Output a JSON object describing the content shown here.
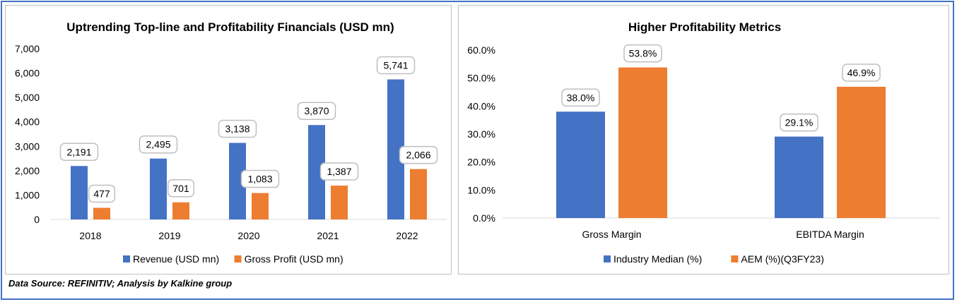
{
  "chart_data": [
    {
      "type": "bar",
      "title": "Uptrending Top-line and Profitability Financials (USD mn)",
      "categories": [
        "2018",
        "2019",
        "2020",
        "2021",
        "2022"
      ],
      "series": [
        {
          "name": "Revenue (USD mn)",
          "color": "#4472c4",
          "values": [
            2191,
            2495,
            3138,
            3870,
            5741
          ],
          "labels": [
            "2,191",
            "2,495",
            "3,138",
            "3,870",
            "5,741"
          ]
        },
        {
          "name": "Gross Profit (USD mn)",
          "color": "#ed7d31",
          "values": [
            477,
            701,
            1083,
            1387,
            2066
          ],
          "labels": [
            "477",
            "701",
            "1,083",
            "1,387",
            "2,066"
          ]
        }
      ],
      "ylim": [
        0,
        7000
      ],
      "yticks": [
        0,
        1000,
        2000,
        3000,
        4000,
        5000,
        6000,
        7000
      ],
      "ytick_labels": [
        "0",
        "1,000",
        "2,000",
        "3,000",
        "4,000",
        "5,000",
        "6,000",
        "7,000"
      ],
      "xlabel": "",
      "ylabel": "",
      "grid": false,
      "legend": "bottom"
    },
    {
      "type": "bar",
      "title": "Higher Profitability Metrics",
      "categories": [
        "Gross Margin",
        "EBITDA Margin"
      ],
      "series": [
        {
          "name": "Industry Median (%)",
          "color": "#4472c4",
          "values": [
            38.0,
            29.1
          ],
          "labels": [
            "38.0%",
            "29.1%"
          ]
        },
        {
          "name": "AEM (%)(Q3FY23)",
          "color": "#ed7d31",
          "values": [
            53.8,
            46.9
          ],
          "labels": [
            "53.8%",
            "46.9%"
          ]
        }
      ],
      "ylim": [
        0,
        60
      ],
      "yticks": [
        0,
        10,
        20,
        30,
        40,
        50,
        60
      ],
      "ytick_labels": [
        "0.0%",
        "10.0%",
        "20.0%",
        "30.0%",
        "40.0%",
        "50.0%",
        "60.0%"
      ],
      "xlabel": "",
      "ylabel": "",
      "grid": false,
      "legend": "bottom"
    }
  ],
  "footer": {
    "source": "Data Source: REFINITIV; Analysis by Kalkine group"
  }
}
